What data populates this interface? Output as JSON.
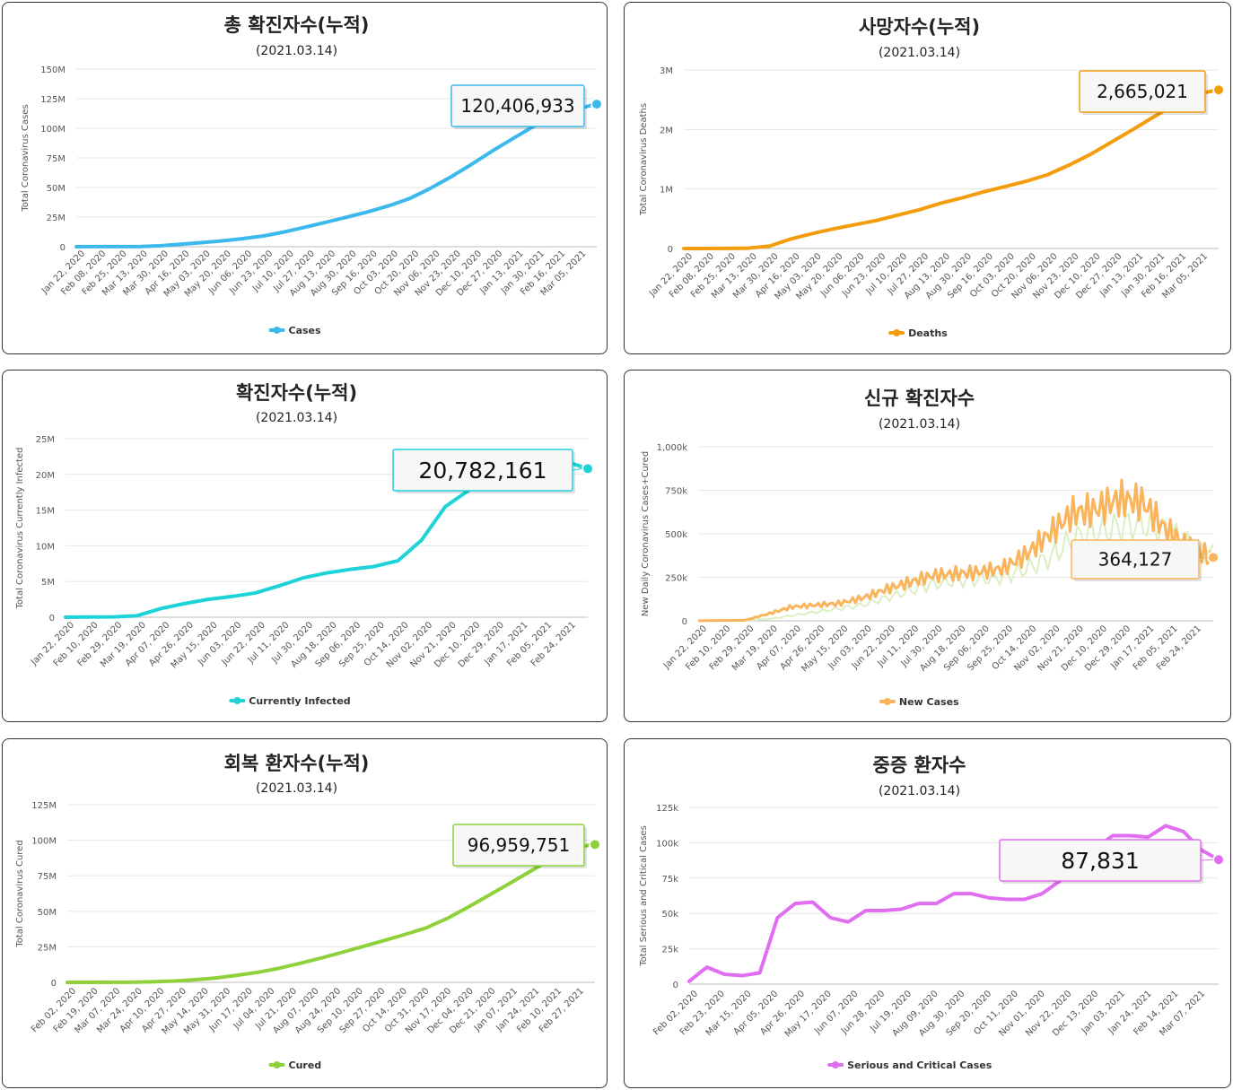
{
  "chart_data": [
    {
      "type": "line",
      "title": "총 확진자수(누적)",
      "date": "(2021.03.14)",
      "ylabel": "Total Coronavirus Cases",
      "legend": "Cases",
      "color": "#3cb9ec",
      "callout": "120,406,933",
      "ylim": [
        0,
        150000000
      ],
      "yticks": [
        {
          "v": 0,
          "l": "0"
        },
        {
          "v": 25000000,
          "l": "25M"
        },
        {
          "v": 50000000,
          "l": "50M"
        },
        {
          "v": 75000000,
          "l": "75M"
        },
        {
          "v": 100000000,
          "l": "100M"
        },
        {
          "v": 125000000,
          "l": "125M"
        },
        {
          "v": 150000000,
          "l": "150M"
        }
      ],
      "xticks": [
        "Jan 22, 2020",
        "Feb 08, 2020",
        "Feb 25, 2020",
        "Mar 13, 2020",
        "Mar 30, 2020",
        "Apr 16, 2020",
        "May 03, 2020",
        "May 20, 2020",
        "Jun 06, 2020",
        "Jun 23, 2020",
        "Jul 10, 2020",
        "Jul 27, 2020",
        "Aug 13, 2020",
        "Aug 30, 2020",
        "Sep 16, 2020",
        "Oct 03, 2020",
        "Oct 20, 2020",
        "Nov 06, 2020",
        "Nov 23, 2020",
        "Dec 10, 2020",
        "Dec 27, 2020",
        "Jan 13, 2021",
        "Jan 30, 2021",
        "Feb 16, 2021",
        "Mar 05, 2021"
      ],
      "values": [
        0.0006,
        0.07,
        0.08,
        0.1,
        0.8,
        2.1,
        3.4,
        4.9,
        6.8,
        9.1,
        12.5,
        16.5,
        20.7,
        25.0,
        29.4,
        34.5,
        40.6,
        49.2,
        59.0,
        69.7,
        81.0,
        91.6,
        102.0,
        109.8,
        116.2,
        120.4
      ],
      "scale": 1000000
    },
    {
      "type": "line",
      "title": "사망자수(누적)",
      "date": "(2021.03.14)",
      "ylabel": "Total Coronavirus Deaths",
      "legend": "Deaths",
      "color": "#f39d0c",
      "callout": "2,665,021",
      "ylim": [
        0,
        3000000
      ],
      "yticks": [
        {
          "v": 0,
          "l": "0"
        },
        {
          "v": 1000000,
          "l": "1M"
        },
        {
          "v": 2000000,
          "l": "2M"
        },
        {
          "v": 3000000,
          "l": "3M"
        }
      ],
      "xticks": [
        "Jan 22, 2020",
        "Feb 08, 2020",
        "Feb 25, 2020",
        "Mar 13, 2020",
        "Mar 30, 2020",
        "Apr 16, 2020",
        "May 03, 2020",
        "May 20, 2020",
        "Jun 06, 2020",
        "Jun 23, 2020",
        "Jul 10, 2020",
        "Jul 27, 2020",
        "Aug 13, 2020",
        "Aug 30, 2020",
        "Sep 16, 2020",
        "Oct 03, 2020",
        "Oct 20, 2020",
        "Nov 06, 2020",
        "Nov 23, 2020",
        "Dec 10, 2020",
        "Dec 27, 2020",
        "Jan 13, 2021",
        "Jan 30, 2021",
        "Feb 16, 2021",
        "Mar 05, 2021"
      ],
      "values": [
        2e-05,
        0.0007,
        0.0027,
        0.0055,
        0.04,
        0.16,
        0.25,
        0.33,
        0.4,
        0.47,
        0.56,
        0.65,
        0.76,
        0.85,
        0.95,
        1.04,
        1.13,
        1.24,
        1.4,
        1.58,
        1.79,
        2.0,
        2.22,
        2.43,
        2.6,
        2.665
      ],
      "scale": 1000000
    },
    {
      "type": "line",
      "title": "확진자수(누적)",
      "date": "(2021.03.14)",
      "ylabel": "Total Coronavirus Currently Infected",
      "legend": "Currently Infected",
      "color": "#1ed3d8",
      "callout": "20,782,161",
      "ylim": [
        0,
        25000000
      ],
      "yticks": [
        {
          "v": 0,
          "l": "0"
        },
        {
          "v": 5000000,
          "l": "5M"
        },
        {
          "v": 10000000,
          "l": "10M"
        },
        {
          "v": 15000000,
          "l": "15M"
        },
        {
          "v": 20000000,
          "l": "20M"
        },
        {
          "v": 25000000,
          "l": "25M"
        }
      ],
      "xticks": [
        "Jan 22, 2020",
        "Feb 10, 2020",
        "Feb 29, 2020",
        "Mar 19, 2020",
        "Apr 07, 2020",
        "Apr 26, 2020",
        "May 15, 2020",
        "Jun 03, 2020",
        "Jun 22, 2020",
        "Jul 11, 2020",
        "Jul 30, 2020",
        "Aug 18, 2020",
        "Sep 06, 2020",
        "Sep 25, 2020",
        "Oct 14, 2020",
        "Nov 02, 2020",
        "Nov 21, 2020",
        "Dec 10, 2020",
        "Dec 29, 2020",
        "Jan 17, 2021",
        "Feb 05, 2021",
        "Feb 24, 2021"
      ],
      "values": [
        0.0005,
        0.03,
        0.04,
        0.2,
        1.2,
        1.9,
        2.5,
        2.9,
        3.4,
        4.4,
        5.5,
        6.2,
        6.7,
        7.1,
        7.9,
        10.8,
        15.5,
        17.8,
        20.2,
        22.6,
        23.1,
        21.9,
        20.8
      ],
      "scale": 1000000
    },
    {
      "type": "bar",
      "title": "신규 확진자수",
      "date": "(2021.03.14)",
      "ylabel": "New Daily Coronavirus Cases+Cured",
      "legend": "New Cases",
      "color": "#f9b45c",
      "color2": "#dcefc4",
      "callout": "364,127",
      "ylim": [
        0,
        1000000
      ],
      "yticks": [
        {
          "v": 0,
          "l": "0"
        },
        {
          "v": 250000,
          "l": "250k"
        },
        {
          "v": 500000,
          "l": "500k"
        },
        {
          "v": 750000,
          "l": "750k"
        },
        {
          "v": 1000000,
          "l": "1,000k"
        }
      ],
      "xticks": [
        "Jan 22, 2020",
        "Feb 10, 2020",
        "Feb 29, 2020",
        "Mar 19, 2020",
        "Apr 07, 2020",
        "Apr 26, 2020",
        "May 15, 2020",
        "Jun 03, 2020",
        "Jun 22, 2020",
        "Jul 11, 2020",
        "Jul 30, 2020",
        "Aug 18, 2020",
        "Sep 06, 2020",
        "Sep 25, 2020",
        "Oct 14, 2020",
        "Nov 02, 2020",
        "Nov 21, 2020",
        "Dec 10, 2020",
        "Dec 29, 2020",
        "Jan 17, 2021",
        "Feb 05, 2021",
        "Feb 24, 2021"
      ],
      "values": [
        0.5,
        2,
        3,
        40,
        80,
        90,
        100,
        130,
        180,
        220,
        260,
        270,
        280,
        300,
        380,
        500,
        620,
        640,
        700,
        680,
        520,
        420,
        364
      ],
      "values2": [
        0.2,
        1,
        2,
        10,
        30,
        50,
        70,
        90,
        130,
        170,
        210,
        230,
        240,
        250,
        300,
        360,
        470,
        510,
        540,
        560,
        520,
        430,
        380
      ],
      "scale": 1000
    },
    {
      "type": "line",
      "title": "회복 환자수(누적)",
      "date": "(2021.03.14)",
      "ylabel": "Total Coronavirus Cured",
      "legend": "Cured",
      "color": "#8fd13a",
      "callout": "96,959,751",
      "ylim": [
        0,
        125000000
      ],
      "yticks": [
        {
          "v": 0,
          "l": "0"
        },
        {
          "v": 25000000,
          "l": "25M"
        },
        {
          "v": 50000000,
          "l": "50M"
        },
        {
          "v": 75000000,
          "l": "75M"
        },
        {
          "v": 100000000,
          "l": "100M"
        },
        {
          "v": 125000000,
          "l": "125M"
        }
      ],
      "xticks": [
        "Feb 02, 2020",
        "Feb 19, 2020",
        "Mar 07, 2020",
        "Mar 24, 2020",
        "Apr 10, 2020",
        "Apr 27, 2020",
        "May 14, 2020",
        "May 31, 2020",
        "Jun 17, 2020",
        "Jul 04, 2020",
        "Jul 21, 2020",
        "Aug 07, 2020",
        "Aug 24, 2020",
        "Sep 10, 2020",
        "Sep 27, 2020",
        "Oct 14, 2020",
        "Oct 31, 2020",
        "Nov 17, 2020",
        "Dec 04, 2020",
        "Dec 21, 2020",
        "Jan 07, 2021",
        "Jan 24, 2021",
        "Feb 10, 2021",
        "Feb 27, 2021"
      ],
      "values": [
        0.0003,
        0.01,
        0.05,
        0.1,
        0.4,
        0.9,
        1.8,
        3.0,
        4.9,
        7.0,
        9.8,
        13.3,
        17.0,
        21.0,
        25.2,
        29.4,
        33.7,
        38.3,
        45.0,
        53.0,
        61.5,
        70.0,
        78.7,
        87.3,
        95.0,
        97.0
      ],
      "scale": 1000000
    },
    {
      "type": "line",
      "title": "중증 환자수",
      "date": "(2021.03.14)",
      "ylabel": "Total Serious and Critical Cases",
      "legend": "Serious and Critical Cases",
      "color": "#e16ef0",
      "callout": "87,831",
      "ylim": [
        0,
        125000
      ],
      "yticks": [
        {
          "v": 0,
          "l": "0"
        },
        {
          "v": 25000,
          "l": "25k"
        },
        {
          "v": 50000,
          "l": "50k"
        },
        {
          "v": 75000,
          "l": "75k"
        },
        {
          "v": 100000,
          "l": "100k"
        },
        {
          "v": 125000,
          "l": "125k"
        }
      ],
      "xticks": [
        "Feb 02, 2020",
        "Feb 23, 2020",
        "Mar 15, 2020",
        "Apr 05, 2020",
        "Apr 26, 2020",
        "May 17, 2020",
        "Jun 07, 2020",
        "Jun 28, 2020",
        "Jul 19, 2020",
        "Aug 09, 2020",
        "Aug 30, 2020",
        "Sep 20, 2020",
        "Oct 11, 2020",
        "Nov 01, 2020",
        "Nov 22, 2020",
        "Dec 13, 2020",
        "Jan 03, 2021",
        "Jan 24, 2021",
        "Feb 14, 2021",
        "Mar 07, 2021"
      ],
      "values": [
        2,
        12,
        7,
        6,
        8,
        47,
        57,
        58,
        47,
        44,
        52,
        52,
        53,
        57,
        57,
        64,
        64,
        61,
        60,
        60,
        64,
        73,
        83,
        96,
        105,
        105,
        104,
        112,
        108,
        95,
        88
      ],
      "scale": 1000
    }
  ]
}
